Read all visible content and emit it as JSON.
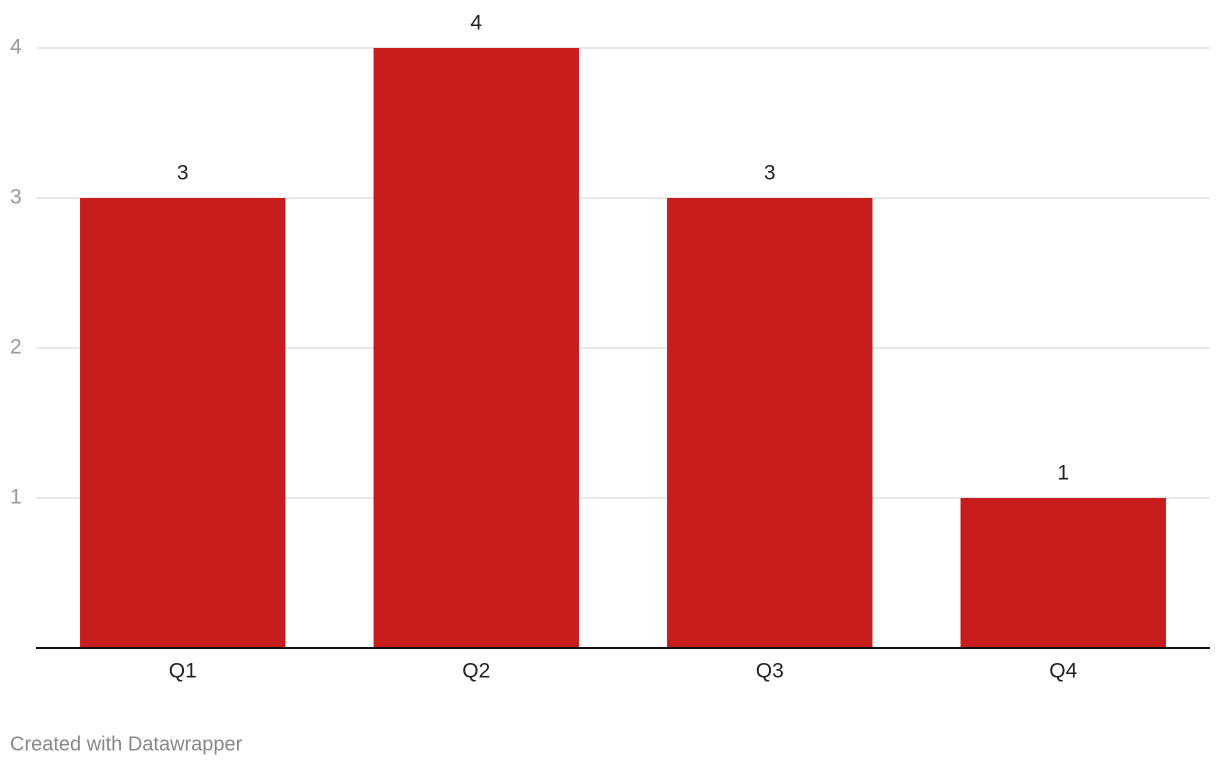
{
  "chart_data": {
    "type": "bar",
    "categories": [
      "Q1",
      "Q2",
      "Q3",
      "Q4"
    ],
    "values": [
      3,
      4,
      3,
      1
    ],
    "color": "#c71e1d",
    "ylim": [
      0,
      4
    ],
    "yticks": [
      1,
      2,
      3,
      4
    ],
    "grid": true,
    "credit": "Created with Datawrapper"
  }
}
